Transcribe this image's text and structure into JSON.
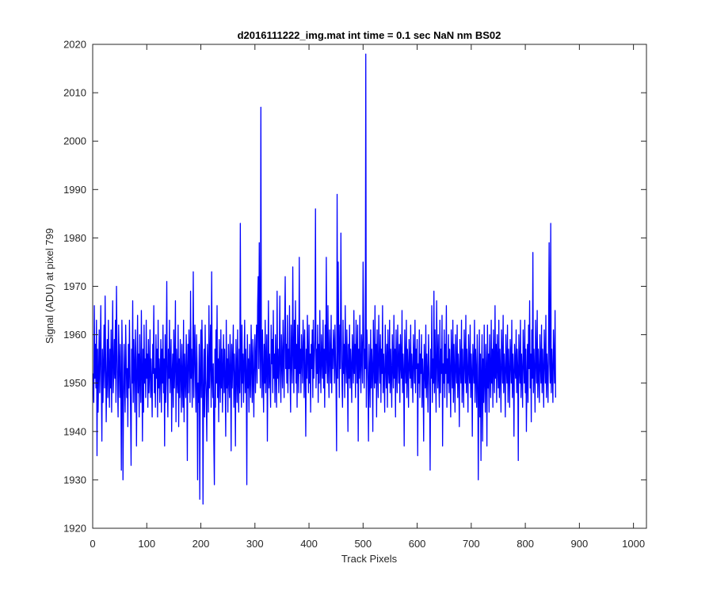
{
  "chart_data": {
    "type": "line",
    "title": "d2016111222_img.mat int time = 0.1 sec  NaN nm BS02",
    "xlabel": "Track Pixels",
    "ylabel": "Signal (ADU) at pixel 799",
    "xlim": [
      0,
      1024
    ],
    "ylim": [
      1920,
      2020
    ],
    "xticks": [
      0,
      100,
      200,
      300,
      400,
      500,
      600,
      700,
      800,
      900,
      1000
    ],
    "yticks": [
      1920,
      1930,
      1940,
      1950,
      1960,
      1970,
      1980,
      1990,
      2000,
      2010,
      2020
    ],
    "grid": false,
    "series": [
      {
        "color": "#0000ff",
        "x_start": 1,
        "x_step": 1,
        "values": [
          1952,
          1946,
          1966,
          1951,
          1958,
          1949,
          1963,
          1935,
          1957,
          1944,
          1952,
          1961,
          1948,
          1955,
          1966,
          1950,
          1938,
          1957,
          1946,
          1954,
          1962,
          1949,
          1968,
          1955,
          1942,
          1951,
          1959,
          1947,
          1963,
          1953,
          1945,
          1957,
          1949,
          1961,
          1944,
          1955,
          1967,
          1948,
          1952,
          1959,
          1951,
          1963,
          1946,
          1970,
          1957,
          1949,
          1943,
          1962,
          1954,
          1947,
          1958,
          1950,
          1932,
          1963,
          1955,
          1930,
          1946,
          1958,
          1950,
          1944,
          1962,
          1955,
          1947,
          1953,
          1941,
          1958,
          1949,
          1963,
          1952,
          1945,
          1933,
          1957,
          1950,
          1967,
          1946,
          1959,
          1953,
          1944,
          1961,
          1955,
          1937,
          1952,
          1964,
          1948,
          1956,
          1943,
          1960,
          1951,
          1946,
          1965,
          1953,
          1938,
          1957,
          1944,
          1962,
          1950,
          1955,
          1947,
          1963,
          1951,
          1956,
          1945,
          1959,
          1948,
          1952,
          1961,
          1947,
          1955,
          1950,
          1943,
          1958,
          1952,
          1966,
          1948,
          1953,
          1945,
          1960,
          1951,
          1957,
          1943,
          1963,
          1949,
          1955,
          1946,
          1952,
          1959,
          1944,
          1957,
          1950,
          1962,
          1948,
          1955,
          1937,
          1960,
          1946,
          1954,
          1971,
          1950,
          1943,
          1957,
          1951,
          1963,
          1948,
          1954,
          1959,
          1940,
          1952,
          1956,
          1945,
          1961,
          1949,
          1954,
          1967,
          1942,
          1957,
          1951,
          1948,
          1962,
          1941,
          1955,
          1947,
          1959,
          1952,
          1944,
          1958,
          1950,
          1945,
          1963,
          1942,
          1956,
          1951,
          1947,
          1960,
          1953,
          1934,
          1958,
          1948,
          1961,
          1955,
          1946,
          1969,
          1951,
          1957,
          1945,
          1953,
          1973,
          1947,
          1956,
          1962,
          1950,
          1944,
          1960,
          1954,
          1930,
          1950,
          1946,
          1958,
          1926,
          1952,
          1961,
          1947,
          1963,
          1955,
          1925,
          1949,
          1957,
          1943,
          1962,
          1951,
          1947,
          1938,
          1958,
          1953,
          1944,
          1966,
          1949,
          1955,
          1962,
          1945,
          1973,
          1951,
          1947,
          1954,
          1938,
          1929,
          1957,
          1945,
          1961,
          1950,
          1966,
          1947,
          1955,
          1942,
          1959,
          1952,
          1946,
          1961,
          1949,
          1957,
          1944,
          1953,
          1960,
          1948,
          1957,
          1950,
          1939,
          1963,
          1949,
          1955,
          1944,
          1958,
          1951,
          1947,
          1960,
          1953,
          1936,
          1958,
          1949,
          1955,
          1962,
          1945,
          1956,
          1951,
          1937,
          1959,
          1953,
          1946,
          1961,
          1950,
          1944,
          1957,
          1948,
          1983,
          1953,
          1945,
          1962,
          1950,
          1956,
          1946,
          1954,
          1963,
          1948,
          1957,
          1952,
          1929,
          1960,
          1949,
          1955,
          1944,
          1958,
          1951,
          1947,
          1962,
          1954,
          1946,
          1959,
          1951,
          1943,
          1957,
          1960,
          1948,
          1955,
          1962,
          1950,
          1966,
          1972,
          1953,
          1979,
          1958,
          1949,
          2007,
          1955,
          1947,
          1961,
          1952,
          1944,
          1958,
          1950,
          1963,
          1948,
          1955,
          1960,
          1938,
          1953,
          1967,
          1949,
          1956,
          1951,
          1945,
          1962,
          1954,
          1959,
          1948,
          1965,
          1951,
          1956,
          1946,
          1960,
          1953,
          1945,
          1969,
          1951,
          1957,
          1948,
          1954,
          1968,
          1952,
          1946,
          1960,
          1955,
          1949,
          1963,
          1956,
          1947,
          1962,
          1972,
          1953,
          1958,
          1950,
          1964,
          1948,
          1957,
          1953,
          1966,
          1951,
          1944,
          1962,
          1955,
          1950,
          1974,
          1957,
          1948,
          1963,
          1953,
          1967,
          1950,
          1958,
          1945,
          1962,
          1954,
          1948,
          1976,
          1952,
          1957,
          1948,
          1960,
          1955,
          1950,
          1963,
          1958,
          1947,
          1961,
          1953,
          1939,
          1957,
          1951,
          1964,
          1955,
          1948,
          1962,
          1950,
          1956,
          1944,
          1958,
          1953,
          1961,
          1947,
          1963,
          1951,
          1955,
          1959,
          1986,
          1949,
          1957,
          1952,
          1962,
          1946,
          1958,
          1950,
          1965,
          1954,
          1948,
          1960,
          1955,
          1951,
          1963,
          1949,
          1957,
          1945,
          1962,
          1952,
          1976,
          1955,
          1950,
          1966,
          1953,
          1947,
          1961,
          1956,
          1950,
          1964,
          1948,
          1957,
          1953,
          1961,
          1958,
          1950,
          1962,
          1955,
          1949,
          1936,
          1989,
          1951,
          1975,
          1958,
          1947,
          1962,
          1953,
          1981,
          1959,
          1950,
          1945,
          1963,
          1952,
          1958,
          1947,
          1966,
          1955,
          1950,
          1961,
          1954,
          1940,
          1958,
          1951,
          1962,
          1949,
          1957,
          1953,
          1946,
          1960,
          1955,
          1950,
          1965,
          1952,
          1958,
          1947,
          1963,
          1956,
          1950,
          1962,
          1938,
          1957,
          1951,
          1964,
          1953,
          1948,
          1960,
          1956,
          1950,
          1975,
          1962,
          1949,
          1957,
          1953,
          2018,
          1945,
          1961,
          1955,
          1950,
          1938,
          1958,
          1952,
          1945,
          1961,
          1949,
          1957,
          1953,
          1940,
          1963,
          1955,
          1949,
          1966,
          1950,
          1958,
          1943,
          1961,
          1953,
          1947,
          1964,
          1955,
          1950,
          1960,
          1946,
          1957,
          1952,
          1966,
          1948,
          1956,
          1951,
          1944,
          1962,
          1954,
          1949,
          1958,
          1945,
          1961,
          1953,
          1950,
          1963,
          1948,
          1957,
          1952,
          1945,
          1960,
          1954,
          1949,
          1964,
          1951,
          1957,
          1943,
          1961,
          1953,
          1948,
          1962,
          1955,
          1950,
          1958,
          1946,
          1960,
          1954,
          1951,
          1965,
          1948,
          1956,
          1952,
          1937,
          1961,
          1955,
          1950,
          1963,
          1947,
          1957,
          1953,
          1945,
          1959,
          1954,
          1951,
          1962,
          1949,
          1956,
          1952,
          1946,
          1960,
          1955,
          1950,
          1963,
          1948,
          1957,
          1953,
          1959,
          1935,
          1954,
          1950,
          1961,
          1947,
          1956,
          1952,
          1960,
          1945,
          1955,
          1951,
          1938,
          1958,
          1953,
          1949,
          1962,
          1947,
          1956,
          1952,
          1944,
          1960,
          1954,
          1949,
          1932,
          1957,
          1951,
          1966,
          1946,
          1955,
          1950,
          1969,
          1948,
          1961,
          1952,
          1944,
          1967,
          1955,
          1949,
          1960,
          1951,
          1945,
          1963,
          1948,
          1957,
          1952,
          1964,
          1937,
          1954,
          1950,
          1961,
          1947,
          1958,
          1952,
          1966,
          1945,
          1955,
          1950,
          1960,
          1948,
          1957,
          1952,
          1943,
          1961,
          1955,
          1949,
          1963,
          1946,
          1958,
          1952,
          1944,
          1960,
          1954,
          1950,
          1962,
          1947,
          1956,
          1952,
          1941,
          1959,
          1954,
          1950,
          1963,
          1946,
          1957,
          1951,
          1945,
          1961,
          1955,
          1950,
          1964,
          1948,
          1957,
          1952,
          1944,
          1960,
          1953,
          1950,
          1962,
          1947,
          1956,
          1952,
          1939,
          1958,
          1954,
          1950,
          1963,
          1946,
          1957,
          1952,
          1945,
          1960,
          1953,
          1930,
          1948,
          1961,
          1943,
          1956,
          1934,
          1952,
          1960,
          1938,
          1955,
          1946,
          1962,
          1950,
          1944,
          1958,
          1953,
          1937,
          1962,
          1949,
          1956,
          1944,
          1960,
          1952,
          1947,
          1963,
          1950,
          1957,
          1945,
          1961,
          1953,
          1948,
          1966,
          1951,
          1958,
          1946,
          1960,
          1954,
          1949,
          1963,
          1947,
          1957,
          1952,
          1944,
          1961,
          1955,
          1950,
          1964,
          1948,
          1956,
          1952,
          1943,
          1960,
          1954,
          1950,
          1962,
          1946,
          1957,
          1952,
          1945,
          1959,
          1955,
          1950,
          1963,
          1947,
          1956,
          1952,
          1939,
          1958,
          1954,
          1951,
          1961,
          1948,
          1957,
          1953,
          1934,
          1960,
          1954,
          1950,
          1963,
          1947,
          1956,
          1952,
          1945,
          1961,
          1955,
          1950,
          1963,
          1948,
          1957,
          1940,
          1951,
          1958,
          1946,
          1962,
          1953,
          1967,
          1949,
          1956,
          1942,
          1961,
          1951,
          1977,
          1948,
          1957,
          1952,
          1944,
          1963,
          1955,
          1950,
          1965,
          1947,
          1957,
          1952,
          1946,
          1960,
          1954,
          1950,
          1962,
          1948,
          1957,
          1952,
          1945,
          1961,
          1955,
          1950,
          1964,
          1947,
          1956,
          1952,
          1946,
          1960,
          1979,
          1954,
          1950,
          1983,
          1948,
          1957,
          1952,
          1946,
          1961,
          1955,
          1950,
          1965,
          1947
        ]
      }
    ]
  }
}
